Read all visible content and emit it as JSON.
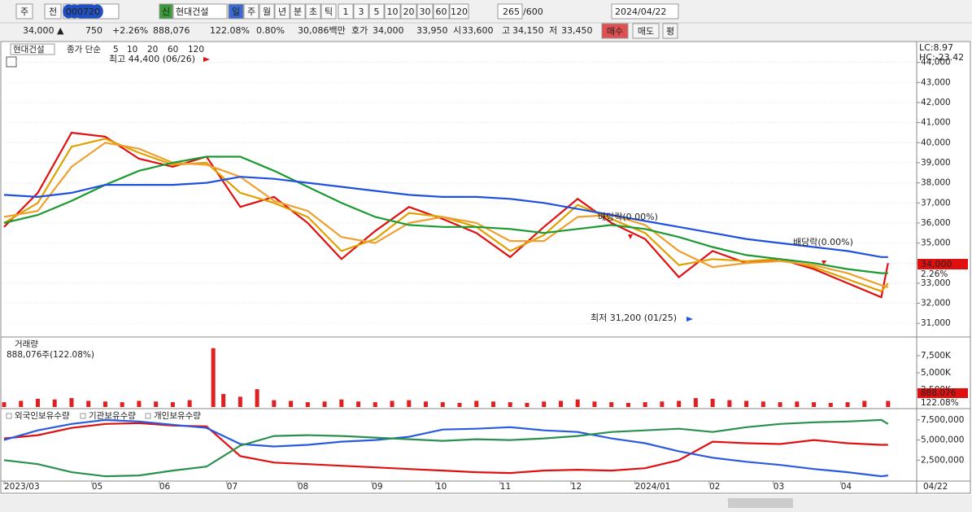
{
  "toolbar": {
    "buttons_left": [
      "주",
      "전"
    ],
    "code": "000720",
    "badge": "신",
    "name": "현대건설",
    "periods": [
      "일",
      "주",
      "월",
      "년",
      "분",
      "초",
      "틱"
    ],
    "intervals": [
      "1",
      "3",
      "5",
      "10",
      "20",
      "30",
      "60",
      "120"
    ],
    "count": "265",
    "total": "/600",
    "date": "2024/04/22"
  },
  "quote": {
    "items": [
      "34,000 ▲",
      "750",
      "+2.26%",
      "888,076",
      "122.08%",
      "0.80%",
      "30,086백만",
      "호가",
      "34,000",
      "33,950",
      "시",
      "33,600",
      "고",
      "34,150",
      "저",
      "33,450"
    ],
    "buttons": [
      "매수",
      "매도",
      "평"
    ]
  },
  "chart_data": [
    {
      "type": "line",
      "name": "현대건설",
      "legend_label": "종가 단순",
      "right_labels": [
        "LC:8.97",
        "HC:-23.42"
      ],
      "last_label": "34,000",
      "change_label": "2.26%",
      "annotations": [
        "최고 44,400 (06/26)",
        "최저 31,200 (01/25)",
        "배당락(0.00%)",
        "배당락(0.00%)"
      ],
      "xlim": [
        0,
        270
      ],
      "ylim": [
        30400,
        45000
      ],
      "grid": true,
      "yticks": [
        {
          "value": 31000,
          "label": "31,000"
        },
        {
          "value": 32000,
          "label": "32,000"
        },
        {
          "value": 33000,
          "label": "33,000"
        },
        {
          "value": 34000,
          "label": "34,000"
        },
        {
          "value": 35000,
          "label": "35,000"
        },
        {
          "value": 36000,
          "label": "36,000"
        },
        {
          "value": 37000,
          "label": "37,000"
        },
        {
          "value": 38000,
          "label": "38,000"
        },
        {
          "value": 39000,
          "label": "39,000"
        },
        {
          "value": 40000,
          "label": "40,000"
        },
        {
          "value": 41000,
          "label": "41,000"
        },
        {
          "value": 42000,
          "label": "42,000"
        },
        {
          "value": 43000,
          "label": "43,000"
        },
        {
          "value": 44000,
          "label": "44,000"
        }
      ],
      "x": [
        0,
        10,
        20,
        30,
        40,
        50,
        60,
        70,
        80,
        90,
        100,
        110,
        120,
        130,
        140,
        150,
        160,
        170,
        180,
        190,
        200,
        210,
        220,
        230,
        240,
        250,
        260,
        262
      ],
      "series": [
        {
          "name": "5",
          "color": "#e01010",
          "values": [
            35800,
            37500,
            40500,
            40300,
            39200,
            38800,
            39300,
            36800,
            37300,
            36000,
            34200,
            35600,
            36800,
            36200,
            35500,
            34300,
            35800,
            37200,
            36000,
            35200,
            33300,
            34600,
            34000,
            34200,
            33700,
            33000,
            32300,
            34000
          ]
        },
        {
          "name": "10",
          "color": "#e0a000",
          "values": [
            36000,
            37000,
            39800,
            40200,
            39500,
            38900,
            39000,
            37500,
            37000,
            36300,
            34600,
            35200,
            36500,
            36300,
            35800,
            34600,
            35400,
            36900,
            36200,
            35500,
            33900,
            34200,
            34100,
            34200,
            33800,
            33200,
            32600,
            33000
          ]
        },
        {
          "name": "20",
          "color": "#f0a030",
          "values": [
            36300,
            36600,
            38800,
            40000,
            39700,
            39000,
            38900,
            38300,
            37100,
            36600,
            35300,
            35000,
            36000,
            36300,
            36000,
            35100,
            35100,
            36300,
            36400,
            35900,
            34600,
            33800,
            34000,
            34100,
            33900,
            33500,
            32900,
            32800
          ]
        },
        {
          "name": "60",
          "color": "#1a9a30",
          "values": [
            36000,
            36400,
            37100,
            37900,
            38600,
            39000,
            39300,
            39300,
            38600,
            37800,
            37000,
            36300,
            35900,
            35800,
            35800,
            35700,
            35500,
            35700,
            35900,
            35700,
            35300,
            34800,
            34400,
            34200,
            34000,
            33700,
            33500,
            33500
          ]
        },
        {
          "name": "120",
          "color": "#2050e0",
          "values": [
            37400,
            37300,
            37500,
            37900,
            37900,
            37900,
            38000,
            38300,
            38200,
            38000,
            37800,
            37600,
            37400,
            37300,
            37300,
            37200,
            37000,
            36700,
            36400,
            36100,
            35800,
            35500,
            35200,
            35000,
            34800,
            34600,
            34300,
            34300
          ]
        }
      ]
    },
    {
      "type": "bar",
      "title": "거래량",
      "subtitle": "888,076주(122.08%)",
      "last_label": "888,076",
      "change_label": "122.08%",
      "color": "#e02020",
      "xlim": [
        0,
        270
      ],
      "ylim": [
        0,
        10000000
      ],
      "yticks": [
        {
          "value": 2500000,
          "label": "2,500K"
        },
        {
          "value": 5000000,
          "label": "5,000K"
        },
        {
          "value": 7500000,
          "label": "7,500K"
        }
      ],
      "x": [
        0,
        5,
        10,
        15,
        20,
        25,
        30,
        35,
        40,
        45,
        50,
        55,
        62,
        65,
        70,
        75,
        80,
        85,
        90,
        95,
        100,
        105,
        110,
        115,
        120,
        125,
        130,
        135,
        140,
        145,
        150,
        155,
        160,
        165,
        170,
        175,
        180,
        185,
        190,
        195,
        200,
        205,
        210,
        215,
        220,
        225,
        230,
        235,
        240,
        245,
        250,
        255,
        262
      ],
      "values": [
        700000,
        900000,
        1200000,
        1100000,
        1300000,
        900000,
        800000,
        700000,
        900000,
        800000,
        700000,
        1000000,
        8600000,
        1900000,
        1500000,
        2600000,
        1000000,
        900000,
        700000,
        800000,
        1100000,
        800000,
        700000,
        900000,
        1000000,
        800000,
        700000,
        600000,
        900000,
        800000,
        700000,
        600000,
        800000,
        900000,
        1100000,
        800000,
        700000,
        600000,
        700000,
        800000,
        900000,
        1300000,
        1200000,
        1000000,
        900000,
        800000,
        700000,
        800000,
        700000,
        600000,
        700000,
        900000,
        888076
      ]
    },
    {
      "type": "line",
      "xlim": [
        0,
        270
      ],
      "ylim": [
        0,
        8700000
      ],
      "yticks": [
        {
          "value": 2500000,
          "label": "2,500,000"
        },
        {
          "value": 5000000,
          "label": "5,000,000"
        },
        {
          "value": 7500000,
          "label": "7,500,000"
        }
      ],
      "xticks": [
        {
          "value": 0,
          "label": "2023/03"
        },
        {
          "value": 26,
          "label": "05"
        },
        {
          "value": 46,
          "label": "06"
        },
        {
          "value": 66,
          "label": "07"
        },
        {
          "value": 87,
          "label": "08"
        },
        {
          "value": 109,
          "label": "09"
        },
        {
          "value": 128,
          "label": "10"
        },
        {
          "value": 147,
          "label": "11"
        },
        {
          "value": 168,
          "label": "12"
        },
        {
          "value": 187,
          "label": "2024/01"
        },
        {
          "value": 209,
          "label": "02"
        },
        {
          "value": 228,
          "label": "03"
        },
        {
          "value": 248,
          "label": "04"
        }
      ],
      "x_end_label": "04/22",
      "x": [
        0,
        10,
        20,
        30,
        40,
        50,
        60,
        70,
        80,
        90,
        100,
        110,
        120,
        130,
        140,
        150,
        160,
        170,
        180,
        190,
        200,
        210,
        220,
        230,
        240,
        250,
        260,
        262
      ],
      "series": [
        {
          "name": "외국인보유수량",
          "color": "#e01010",
          "values": [
            5200000,
            5600000,
            6500000,
            7000000,
            7100000,
            6800000,
            6700000,
            3000000,
            2200000,
            2000000,
            1800000,
            1600000,
            1400000,
            1200000,
            1000000,
            900000,
            1200000,
            1300000,
            1200000,
            1500000,
            2500000,
            4800000,
            4600000,
            4500000,
            5000000,
            4600000,
            4400000,
            4400000
          ]
        },
        {
          "name": "기관보유수량",
          "color": "#2a5ae0",
          "values": [
            5000000,
            6200000,
            7000000,
            7500000,
            7300000,
            6900000,
            6500000,
            4500000,
            4200000,
            4400000,
            4800000,
            5000000,
            5400000,
            6300000,
            6400000,
            6600000,
            6200000,
            6000000,
            5200000,
            4600000,
            3600000,
            2800000,
            2300000,
            1900000,
            1400000,
            1000000,
            500000,
            600000
          ]
        },
        {
          "name": "개인보유수량",
          "color": "#2a9050",
          "values": [
            2500000,
            2000000,
            1000000,
            500000,
            600000,
            1200000,
            1700000,
            4300000,
            5500000,
            5600000,
            5500000,
            5300000,
            5100000,
            4900000,
            5100000,
            5000000,
            5200000,
            5500000,
            6000000,
            6200000,
            6400000,
            6000000,
            6600000,
            7000000,
            7200000,
            7300000,
            7500000,
            7000000
          ]
        }
      ]
    }
  ]
}
